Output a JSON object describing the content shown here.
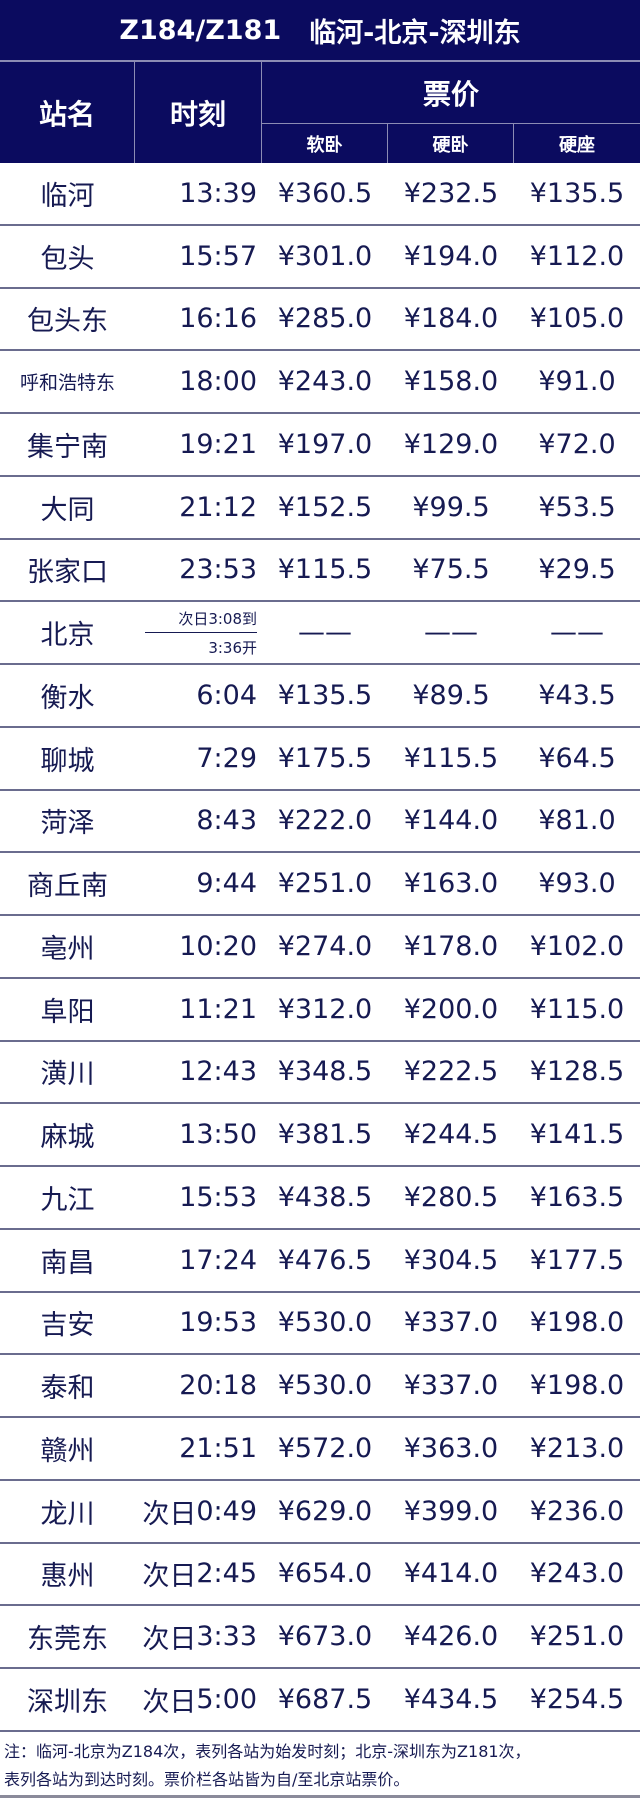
{
  "title": {
    "train": "Z184/Z181",
    "route": "临河-北京-深圳东"
  },
  "header": {
    "station": "站名",
    "time": "时刻",
    "fare": "票价",
    "classes": [
      "软卧",
      "硬卧",
      "硬座"
    ]
  },
  "colors": {
    "header_bg": "#0b0b5f",
    "text": "#161a52"
  },
  "rows": [
    {
      "station": "临河",
      "prefix": "",
      "time": "13:39",
      "p": [
        "¥360.5",
        "¥232.5",
        "¥135.5"
      ]
    },
    {
      "station": "包头",
      "prefix": "",
      "time": "15:57",
      "p": [
        "¥301.0",
        "¥194.0",
        "¥112.0"
      ]
    },
    {
      "station": "包头东",
      "prefix": "",
      "time": "16:16",
      "p": [
        "¥285.0",
        "¥184.0",
        "¥105.0"
      ]
    },
    {
      "station": "呼和浩特东",
      "prefix": "",
      "time": "18:00",
      "p": [
        "¥243.0",
        "¥158.0",
        "¥91.0"
      ]
    },
    {
      "station": "集宁南",
      "prefix": "",
      "time": "19:21",
      "p": [
        "¥197.0",
        "¥129.0",
        "¥72.0"
      ]
    },
    {
      "station": "大同",
      "prefix": "",
      "time": "21:12",
      "p": [
        "¥152.5",
        "¥99.5",
        "¥53.5"
      ]
    },
    {
      "station": "张家口",
      "prefix": "",
      "time": "23:53",
      "p": [
        "¥115.5",
        "¥75.5",
        "¥29.5"
      ]
    },
    {
      "station": "北京",
      "arrive": "次日3:08到",
      "depart": "3:36开",
      "p": [
        "——",
        "——",
        "——"
      ]
    },
    {
      "station": "衡水",
      "prefix": "",
      "time": "6:04",
      "p": [
        "¥135.5",
        "¥89.5",
        "¥43.5"
      ]
    },
    {
      "station": "聊城",
      "prefix": "",
      "time": "7:29",
      "p": [
        "¥175.5",
        "¥115.5",
        "¥64.5"
      ]
    },
    {
      "station": "菏泽",
      "prefix": "",
      "time": "8:43",
      "p": [
        "¥222.0",
        "¥144.0",
        "¥81.0"
      ]
    },
    {
      "station": "商丘南",
      "prefix": "",
      "time": "9:44",
      "p": [
        "¥251.0",
        "¥163.0",
        "¥93.0"
      ]
    },
    {
      "station": "亳州",
      "prefix": "",
      "time": "10:20",
      "p": [
        "¥274.0",
        "¥178.0",
        "¥102.0"
      ]
    },
    {
      "station": "阜阳",
      "prefix": "",
      "time": "11:21",
      "p": [
        "¥312.0",
        "¥200.0",
        "¥115.0"
      ]
    },
    {
      "station": "潢川",
      "prefix": "",
      "time": "12:43",
      "p": [
        "¥348.5",
        "¥222.5",
        "¥128.5"
      ]
    },
    {
      "station": "麻城",
      "prefix": "",
      "time": "13:50",
      "p": [
        "¥381.5",
        "¥244.5",
        "¥141.5"
      ]
    },
    {
      "station": "九江",
      "prefix": "",
      "time": "15:53",
      "p": [
        "¥438.5",
        "¥280.5",
        "¥163.5"
      ]
    },
    {
      "station": "南昌",
      "prefix": "",
      "time": "17:24",
      "p": [
        "¥476.5",
        "¥304.5",
        "¥177.5"
      ]
    },
    {
      "station": "吉安",
      "prefix": "",
      "time": "19:53",
      "p": [
        "¥530.0",
        "¥337.0",
        "¥198.0"
      ]
    },
    {
      "station": "泰和",
      "prefix": "",
      "time": "20:18",
      "p": [
        "¥530.0",
        "¥337.0",
        "¥198.0"
      ]
    },
    {
      "station": "赣州",
      "prefix": "",
      "time": "21:51",
      "p": [
        "¥572.0",
        "¥363.0",
        "¥213.0"
      ]
    },
    {
      "station": "龙川",
      "prefix": "次日",
      "time": "0:49",
      "p": [
        "¥629.0",
        "¥399.0",
        "¥236.0"
      ]
    },
    {
      "station": "惠州",
      "prefix": "次日",
      "time": "2:45",
      "p": [
        "¥654.0",
        "¥414.0",
        "¥243.0"
      ]
    },
    {
      "station": "东莞东",
      "prefix": "次日",
      "time": "3:33",
      "p": [
        "¥673.0",
        "¥426.0",
        "¥251.0"
      ]
    },
    {
      "station": "深圳东",
      "prefix": "次日",
      "time": "5:00",
      "p": [
        "¥687.5",
        "¥434.5",
        "¥254.5"
      ]
    }
  ],
  "note": {
    "line1": "注：临河-北京为Z184次，表列各站为始发时刻；北京-深圳东为Z181次，",
    "line2": "表列各站为到达时刻。票价栏各站皆为自/至北京站票价。"
  }
}
